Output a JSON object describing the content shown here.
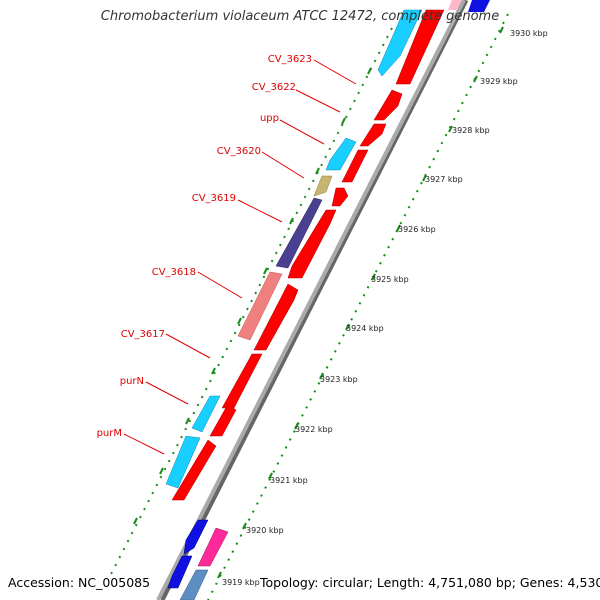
{
  "title": "Chromobacterium violaceum ATCC 12472, complete genome",
  "footer": {
    "accession": "Accession: NC_005085",
    "topology": "Topology: circular; Length: 4,751,080 bp; Genes: 4,530"
  },
  "colors": {
    "backbone": "#999999",
    "backbone_shadow": "#666666",
    "tick": "#1a8a1a",
    "label": "#e00000",
    "kbp_label": "#222222",
    "cds_forward": "#ff0000",
    "cds_reverse": "#19cfff",
    "cds_reverse_alt": "#4a4090",
    "cds_reverse_pink": "#f08080",
    "cds_reverse_tan": "#c9b56f",
    "gene_blue": "#1010e0",
    "gene_magenta": "#ff2a9a",
    "gene_steel": "#5d8fc2"
  },
  "kbp_ticks": [
    "3930 kbp",
    "3929 kbp",
    "3928 kbp",
    "3927 kbp",
    "3926 kbp",
    "3925 kbp",
    "3924 kbp",
    "3923 kbp",
    "3922 kbp",
    "3921 kbp",
    "3920 kbp",
    "3919 kbp"
  ],
  "gene_labels": [
    "CV_3623",
    "CV_3622",
    "upp",
    "CV_3620",
    "CV_3619",
    "CV_3618",
    "CV_3617",
    "purN",
    "purM"
  ]
}
